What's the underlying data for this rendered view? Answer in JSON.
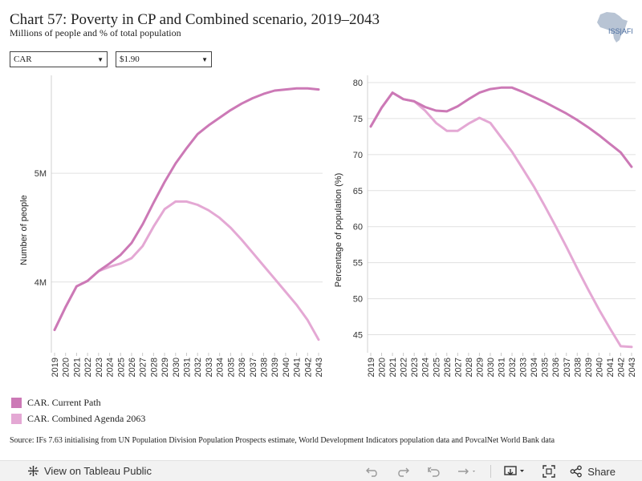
{
  "header": {
    "title": "Chart 57: Poverty in CP and Combined scenario, 2019–2043",
    "subtitle": "Millions of people and % of total population",
    "logo_text": "ISS|AFI"
  },
  "filters": {
    "country": "CAR",
    "poverty_line": "$1.90"
  },
  "colors": {
    "current_path": "#cc79b6",
    "combined_agenda": "#e4a8d4",
    "grid": "#e0e0e0"
  },
  "chart_data": [
    {
      "type": "line",
      "ylabel": "Number of people",
      "ylim": [
        3.35,
        5.9
      ],
      "yticks": [
        4,
        5
      ],
      "ytick_labels": [
        "4M",
        "5M"
      ],
      "x": [
        2019,
        2020,
        2021,
        2022,
        2023,
        2024,
        2025,
        2026,
        2027,
        2028,
        2029,
        2030,
        2031,
        2032,
        2033,
        2034,
        2035,
        2036,
        2037,
        2038,
        2039,
        2040,
        2041,
        2042,
        2043
      ],
      "series": [
        {
          "name": "CAR. Current Path",
          "values": [
            3.56,
            3.77,
            3.96,
            4.01,
            4.1,
            4.17,
            4.25,
            4.36,
            4.53,
            4.73,
            4.92,
            5.09,
            5.23,
            5.36,
            5.44,
            5.51,
            5.58,
            5.64,
            5.69,
            5.73,
            5.76,
            5.77,
            5.78,
            5.78,
            5.77
          ]
        },
        {
          "name": "CAR. Combined Agenda 2063",
          "values": [
            3.56,
            3.77,
            3.96,
            4.01,
            4.1,
            4.14,
            4.17,
            4.22,
            4.33,
            4.51,
            4.67,
            4.74,
            4.74,
            4.71,
            4.66,
            4.59,
            4.5,
            4.39,
            4.27,
            4.15,
            4.03,
            3.91,
            3.79,
            3.65,
            3.47
          ]
        }
      ]
    },
    {
      "type": "line",
      "ylabel": "Percentage of population (%)",
      "ylim": [
        42.5,
        81
      ],
      "yticks": [
        45,
        50,
        55,
        60,
        65,
        70,
        75,
        80
      ],
      "ytick_labels": [
        "45",
        "50",
        "55",
        "60",
        "65",
        "70",
        "75",
        "80"
      ],
      "x": [
        2019,
        2020,
        2021,
        2022,
        2023,
        2024,
        2025,
        2026,
        2027,
        2028,
        2029,
        2030,
        2031,
        2032,
        2033,
        2034,
        2035,
        2036,
        2037,
        2038,
        2039,
        2040,
        2041,
        2042,
        2043
      ],
      "series": [
        {
          "name": "CAR. Current Path",
          "values": [
            73.9,
            76.5,
            78.6,
            77.7,
            77.4,
            76.6,
            76.1,
            76.0,
            76.7,
            77.7,
            78.6,
            79.1,
            79.3,
            79.3,
            78.7,
            78.0,
            77.3,
            76.5,
            75.7,
            74.8,
            73.8,
            72.7,
            71.5,
            70.3,
            68.3
          ]
        },
        {
          "name": "CAR. Combined Agenda 2063",
          "values": [
            73.9,
            76.5,
            78.6,
            77.7,
            77.4,
            76.1,
            74.4,
            73.3,
            73.3,
            74.3,
            75.1,
            74.4,
            72.4,
            70.4,
            68.0,
            65.6,
            62.9,
            60.1,
            57.2,
            54.2,
            51.3,
            48.5,
            45.9,
            43.4,
            43.3
          ]
        }
      ]
    }
  ],
  "legend": {
    "items": [
      "CAR. Current Path",
      "CAR. Combined Agenda 2063"
    ]
  },
  "source": "Source: IFs 7.63 initialising from UN Population Division Population Prospects estimate, World Development Indicators population data and PovcalNet World Bank data",
  "footer": {
    "view_label": "View on Tableau Public",
    "share_label": "Share"
  }
}
